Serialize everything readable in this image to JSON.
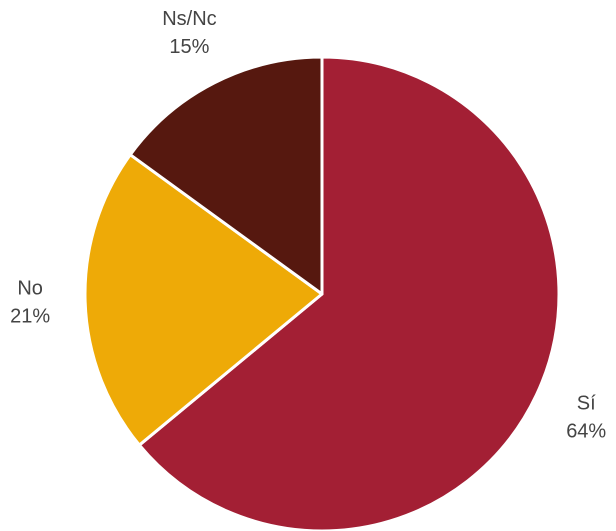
{
  "chart_data": {
    "type": "pie",
    "categories": [
      "Sí",
      "No",
      "Ns/Nc"
    ],
    "values": [
      64,
      21,
      15
    ],
    "value_labels": [
      "64%",
      "21%",
      "15%"
    ],
    "colors": [
      "#a31f34",
      "#eeaa07",
      "#56180f"
    ]
  }
}
